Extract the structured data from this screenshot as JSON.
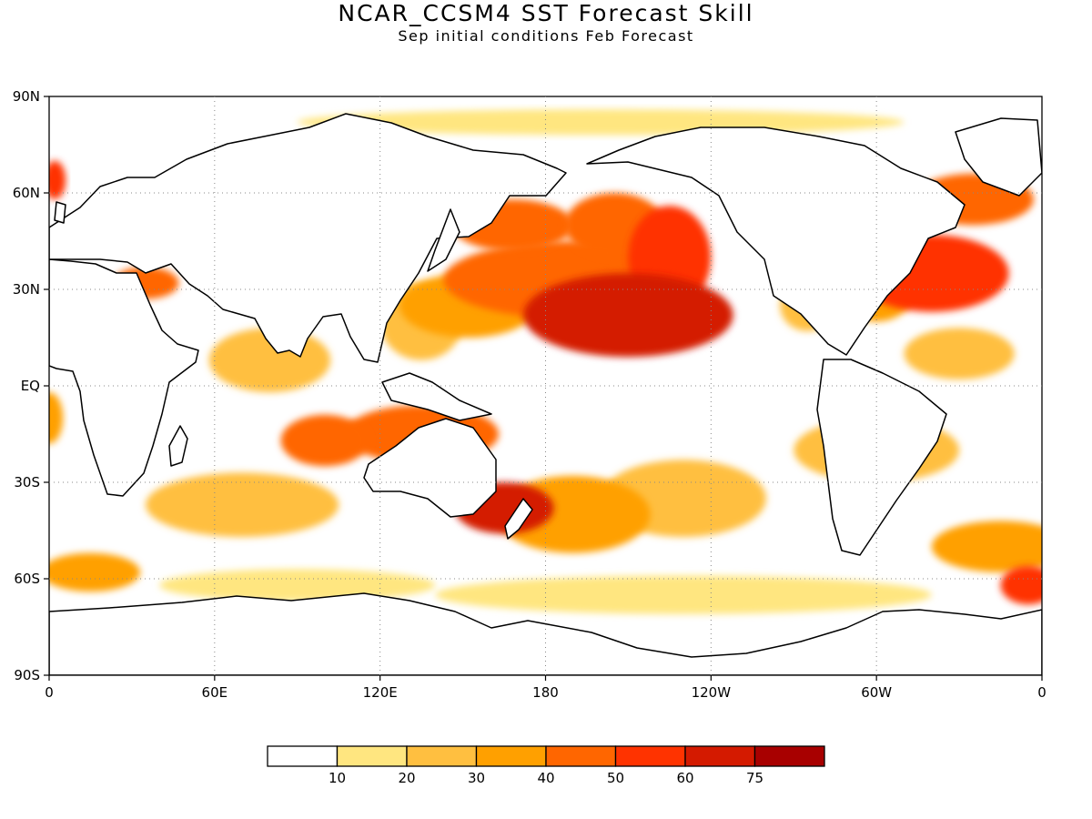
{
  "title": "NCAR_CCSM4 SST Forecast Skill",
  "subtitle": "Sep initial conditions  Feb Forecast",
  "axes": {
    "lat_labels": [
      "90N",
      "60N",
      "30N",
      "EQ",
      "30S",
      "60S",
      "90S"
    ],
    "lat_values": [
      90,
      60,
      30,
      0,
      -30,
      -60,
      -90
    ],
    "lon_labels": [
      "0",
      "60E",
      "120E",
      "180",
      "120W",
      "60W",
      "0"
    ],
    "lon_values": [
      0,
      60,
      120,
      180,
      240,
      300,
      360
    ],
    "grid": "dotted"
  },
  "colorbar": {
    "colors": [
      "#ffffff",
      "#ffe680",
      "#ffbf40",
      "#ffa000",
      "#ff6600",
      "#ff3300",
      "#d41a00",
      "#a80000"
    ],
    "tick_labels": [
      "10",
      "20",
      "30",
      "40",
      "50",
      "60",
      "75"
    ]
  },
  "regions": [
    {
      "lon": 210,
      "lat": 22,
      "rx": 38,
      "ry": 13,
      "level": 6
    },
    {
      "lon": 225,
      "lat": 40,
      "rx": 15,
      "ry": 16,
      "level": 5
    },
    {
      "lon": 188,
      "lat": 33,
      "rx": 45,
      "ry": 12,
      "level": 4
    },
    {
      "lon": 168,
      "lat": 50,
      "rx": 22,
      "ry": 8,
      "level": 4
    },
    {
      "lon": 152,
      "lat": 25,
      "rx": 25,
      "ry": 10,
      "level": 3
    },
    {
      "lon": 135,
      "lat": 20,
      "rx": 15,
      "ry": 12,
      "level": 2
    },
    {
      "lon": 205,
      "lat": 50,
      "rx": 18,
      "ry": 10,
      "level": 4
    },
    {
      "lon": 320,
      "lat": 35,
      "rx": 28,
      "ry": 12,
      "level": 5
    },
    {
      "lon": 335,
      "lat": 58,
      "rx": 22,
      "ry": 8,
      "level": 4
    },
    {
      "lon": 300,
      "lat": 30,
      "rx": 14,
      "ry": 10,
      "level": 3
    },
    {
      "lon": 275,
      "lat": 25,
      "rx": 10,
      "ry": 8,
      "level": 2
    },
    {
      "lon": 2,
      "lat": 64,
      "rx": 4,
      "ry": 6,
      "level": 5
    },
    {
      "lon": 35,
      "lat": 32,
      "rx": 12,
      "ry": 5,
      "level": 4
    },
    {
      "lon": 165,
      "lat": -38,
      "rx": 18,
      "ry": 8,
      "level": 6
    },
    {
      "lon": 135,
      "lat": -15,
      "rx": 28,
      "ry": 9,
      "level": 4
    },
    {
      "lon": 100,
      "lat": -17,
      "rx": 16,
      "ry": 8,
      "level": 4
    },
    {
      "lon": 190,
      "lat": -40,
      "rx": 28,
      "ry": 12,
      "level": 3
    },
    {
      "lon": 230,
      "lat": -35,
      "rx": 30,
      "ry": 12,
      "level": 2
    },
    {
      "lon": 70,
      "lat": -37,
      "rx": 35,
      "ry": 10,
      "level": 2
    },
    {
      "lon": 15,
      "lat": -58,
      "rx": 18,
      "ry": 6,
      "level": 3
    },
    {
      "lon": 345,
      "lat": -50,
      "rx": 25,
      "ry": 8,
      "level": 3
    },
    {
      "lon": 355,
      "lat": -62,
      "rx": 10,
      "ry": 6,
      "level": 5
    },
    {
      "lon": 300,
      "lat": -20,
      "rx": 30,
      "ry": 10,
      "level": 2
    },
    {
      "lon": 80,
      "lat": 8,
      "rx": 22,
      "ry": 10,
      "level": 2
    },
    {
      "lon": 330,
      "lat": 10,
      "rx": 20,
      "ry": 8,
      "level": 2
    },
    {
      "lon": 0,
      "lat": -10,
      "rx": 5,
      "ry": 8,
      "level": 3
    },
    {
      "lon": 230,
      "lat": -65,
      "rx": 90,
      "ry": 6,
      "level": 1
    },
    {
      "lon": 90,
      "lat": -62,
      "rx": 50,
      "ry": 5,
      "level": 1
    },
    {
      "lon": 200,
      "lat": 82,
      "rx": 110,
      "ry": 4,
      "level": 1
    }
  ]
}
